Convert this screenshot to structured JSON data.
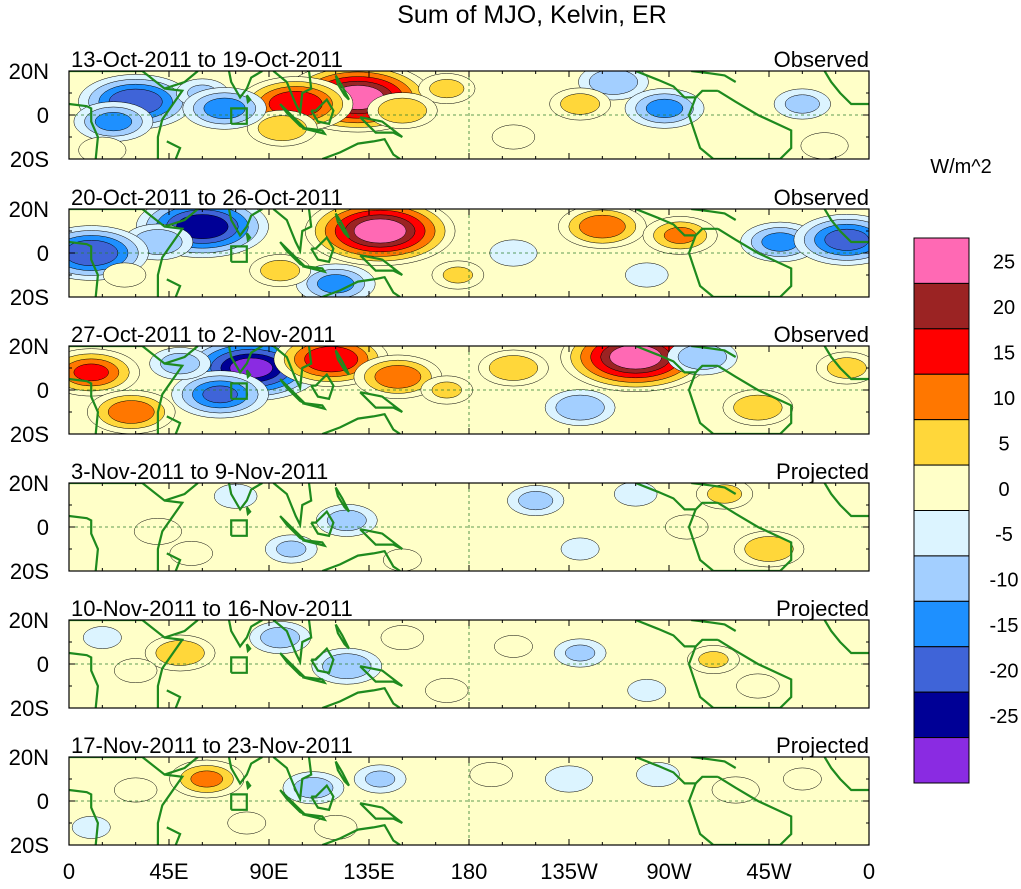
{
  "chart_data": {
    "type": "heatmap",
    "title": "Sum of MJO, Kelvin, ER",
    "units": "W/m^2",
    "longitude_ticks": [
      "0",
      "45E",
      "90E",
      "135E",
      "180",
      "135W",
      "90W",
      "45W",
      "0"
    ],
    "latitude_ticks": [
      "20N",
      "0",
      "20S"
    ],
    "lon_range": [
      0,
      360
    ],
    "lat_range": [
      -20,
      20
    ],
    "colorbar": {
      "labels": [
        "25",
        "20",
        "15",
        "10",
        "5",
        "0",
        "-5",
        "-10",
        "-15",
        "-20",
        "-25"
      ],
      "colors": [
        "#ff69b4",
        "#9b2323",
        "#ff0000",
        "#ff7700",
        "#ffd73a",
        "#ffffc8",
        "#dcf4ff",
        "#a3cfff",
        "#1e90ff",
        "#3f64d8",
        "#000096",
        "#8a2be2"
      ],
      "levels": [
        30,
        22.5,
        17.5,
        12.5,
        7.5,
        2.5,
        -2.5,
        -7.5,
        -12.5,
        -17.5,
        -22.5,
        -30
      ]
    },
    "panels": [
      {
        "period": "13-Oct-2011 to 19-Oct-2011",
        "status": "Observed",
        "anomalies": [
          {
            "lon": 130,
            "lat": 8,
            "value": 30
          },
          {
            "lon": 102,
            "lat": 5,
            "value": 22
          },
          {
            "lon": 96,
            "lat": -6,
            "value": 12
          },
          {
            "lon": 170,
            "lat": 12,
            "value": 9
          },
          {
            "lon": 150,
            "lat": 2,
            "value": 12
          },
          {
            "lon": 30,
            "lat": 6,
            "value": -22
          },
          {
            "lon": 20,
            "lat": -3,
            "value": -14
          },
          {
            "lon": 60,
            "lat": 10,
            "value": -8
          },
          {
            "lon": 70,
            "lat": 3,
            "value": -15
          },
          {
            "lon": 245,
            "lat": 15,
            "value": -12
          },
          {
            "lon": 268,
            "lat": 3,
            "value": -14
          },
          {
            "lon": 230,
            "lat": 5,
            "value": 10
          },
          {
            "lon": 200,
            "lat": -10,
            "value": 6
          },
          {
            "lon": 330,
            "lat": 5,
            "value": -9
          },
          {
            "lon": 340,
            "lat": -14,
            "value": 7
          },
          {
            "lon": 15,
            "lat": -16,
            "value": 7
          }
        ]
      },
      {
        "period": "20-Oct-2011 to 26-Oct-2011",
        "status": "Observed",
        "anomalies": [
          {
            "lon": 140,
            "lat": 10,
            "value": 30
          },
          {
            "lon": 60,
            "lat": 12,
            "value": -26
          },
          {
            "lon": 40,
            "lat": 5,
            "value": -12
          },
          {
            "lon": 10,
            "lat": 0,
            "value": -22
          },
          {
            "lon": 120,
            "lat": -14,
            "value": -14
          },
          {
            "lon": 95,
            "lat": -8,
            "value": 10
          },
          {
            "lon": 240,
            "lat": 12,
            "value": 16
          },
          {
            "lon": 275,
            "lat": 8,
            "value": 13
          },
          {
            "lon": 320,
            "lat": 5,
            "value": -14
          },
          {
            "lon": 350,
            "lat": 6,
            "value": -20
          },
          {
            "lon": 200,
            "lat": 0,
            "value": -7
          },
          {
            "lon": 175,
            "lat": -10,
            "value": 8
          },
          {
            "lon": 25,
            "lat": -10,
            "value": 6
          },
          {
            "lon": 260,
            "lat": -10,
            "value": -6
          }
        ]
      },
      {
        "period": "27-Oct-2011 to 2-Nov-2011",
        "status": "Observed",
        "anomalies": [
          {
            "lon": 82,
            "lat": 10,
            "value": -28
          },
          {
            "lon": 68,
            "lat": -2,
            "value": -18
          },
          {
            "lon": 118,
            "lat": 14,
            "value": 22
          },
          {
            "lon": 148,
            "lat": 6,
            "value": 16
          },
          {
            "lon": 255,
            "lat": 15,
            "value": 30
          },
          {
            "lon": 200,
            "lat": 10,
            "value": 12
          },
          {
            "lon": 170,
            "lat": 0,
            "value": 8
          },
          {
            "lon": 10,
            "lat": 8,
            "value": 18
          },
          {
            "lon": 28,
            "lat": -10,
            "value": 16
          },
          {
            "lon": 50,
            "lat": 12,
            "value": -10
          },
          {
            "lon": 230,
            "lat": -8,
            "value": -12
          },
          {
            "lon": 285,
            "lat": 15,
            "value": -12
          },
          {
            "lon": 310,
            "lat": -8,
            "value": 12
          },
          {
            "lon": 350,
            "lat": 10,
            "value": 10
          }
        ]
      },
      {
        "period": "3-Nov-2011 to 9-Nov-2011",
        "status": "Projected",
        "anomalies": [
          {
            "lon": 315,
            "lat": -10,
            "value": 12
          },
          {
            "lon": 295,
            "lat": 15,
            "value": 9
          },
          {
            "lon": 278,
            "lat": 0,
            "value": 6
          },
          {
            "lon": 40,
            "lat": -2,
            "value": 7
          },
          {
            "lon": 55,
            "lat": -12,
            "value": 6
          },
          {
            "lon": 125,
            "lat": 3,
            "value": -10
          },
          {
            "lon": 100,
            "lat": -10,
            "value": -8
          },
          {
            "lon": 210,
            "lat": 12,
            "value": -9
          },
          {
            "lon": 255,
            "lat": 15,
            "value": -6
          },
          {
            "lon": 75,
            "lat": 14,
            "value": -6
          },
          {
            "lon": 150,
            "lat": -15,
            "value": 5
          },
          {
            "lon": 230,
            "lat": -10,
            "value": -5
          }
        ]
      },
      {
        "period": "10-Nov-2011 to 16-Nov-2011",
        "status": "Projected",
        "anomalies": [
          {
            "lon": 50,
            "lat": 5,
            "value": 12
          },
          {
            "lon": 30,
            "lat": -3,
            "value": 6
          },
          {
            "lon": 95,
            "lat": 12,
            "value": -10
          },
          {
            "lon": 125,
            "lat": -1,
            "value": -12
          },
          {
            "lon": 150,
            "lat": 12,
            "value": 6
          },
          {
            "lon": 200,
            "lat": 8,
            "value": 5
          },
          {
            "lon": 230,
            "lat": 5,
            "value": -8
          },
          {
            "lon": 290,
            "lat": 2,
            "value": 8
          },
          {
            "lon": 310,
            "lat": -10,
            "value": 6
          },
          {
            "lon": 170,
            "lat": -12,
            "value": 6
          },
          {
            "lon": 260,
            "lat": -12,
            "value": -5
          },
          {
            "lon": 15,
            "lat": 12,
            "value": -5
          }
        ]
      },
      {
        "period": "17-Nov-2011 to 23-Nov-2011",
        "status": "Projected",
        "anomalies": [
          {
            "lon": 62,
            "lat": 10,
            "value": 13
          },
          {
            "lon": 30,
            "lat": 5,
            "value": 6
          },
          {
            "lon": 110,
            "lat": 6,
            "value": -10
          },
          {
            "lon": 140,
            "lat": 10,
            "value": -8
          },
          {
            "lon": 190,
            "lat": 12,
            "value": 6
          },
          {
            "lon": 225,
            "lat": 10,
            "value": -7
          },
          {
            "lon": 265,
            "lat": 12,
            "value": -6
          },
          {
            "lon": 300,
            "lat": 5,
            "value": 7
          },
          {
            "lon": 330,
            "lat": 10,
            "value": 5
          },
          {
            "lon": 120,
            "lat": -12,
            "value": 6
          },
          {
            "lon": 10,
            "lat": -12,
            "value": -5
          },
          {
            "lon": 80,
            "lat": -10,
            "value": 5
          }
        ]
      }
    ]
  }
}
